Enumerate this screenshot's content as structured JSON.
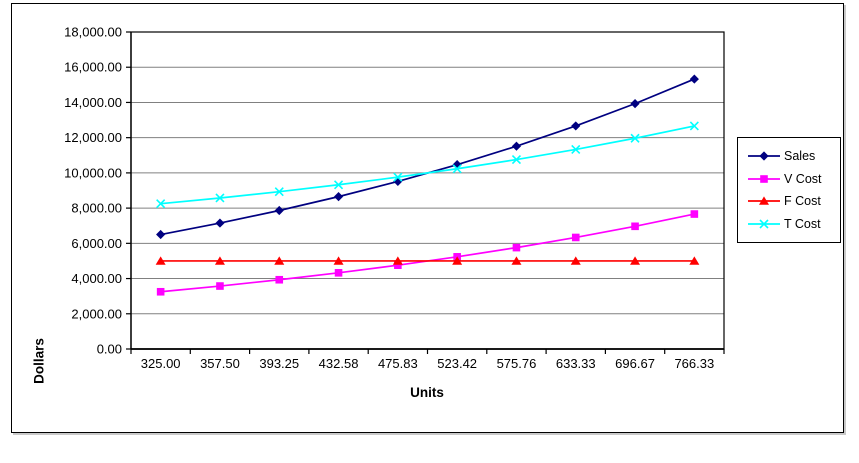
{
  "chart_data": {
    "type": "line",
    "title": "",
    "xlabel": "Units",
    "ylabel": "Dollars",
    "x_categories": [
      "325.00",
      "357.50",
      "393.25",
      "432.58",
      "475.83",
      "523.42",
      "575.76",
      "633.33",
      "696.67",
      "766.33"
    ],
    "y_axis": {
      "min": 0,
      "max": 18000,
      "step": 2000,
      "tick_format": "#,##0.00"
    },
    "grid": true,
    "legend_position": "right",
    "colors": {
      "gridline": "#808080",
      "axis": "#000000",
      "plot_border": "#000000"
    },
    "series": [
      {
        "name": "Sales",
        "color": "#000080",
        "marker": "diamond",
        "values": [
          6500.0,
          7150.0,
          7865.0,
          8651.6,
          9516.6,
          10468.4,
          11515.2,
          12666.6,
          13933.4,
          15326.6
        ]
      },
      {
        "name": "V Cost",
        "color": "#FF00FF",
        "marker": "square",
        "values": [
          3250.0,
          3575.0,
          3932.5,
          4325.8,
          4758.3,
          5234.2,
          5757.6,
          6333.3,
          6966.7,
          7663.3
        ]
      },
      {
        "name": "F Cost",
        "color": "#FF0000",
        "marker": "triangle",
        "values": [
          5000.0,
          5000.0,
          5000.0,
          5000.0,
          5000.0,
          5000.0,
          5000.0,
          5000.0,
          5000.0,
          5000.0
        ]
      },
      {
        "name": "T Cost",
        "color": "#00FFFF",
        "marker": "x",
        "values": [
          8250.0,
          8575.0,
          8932.5,
          9325.8,
          9758.3,
          10234.2,
          10757.6,
          11333.3,
          11966.7,
          12663.3
        ]
      }
    ]
  }
}
